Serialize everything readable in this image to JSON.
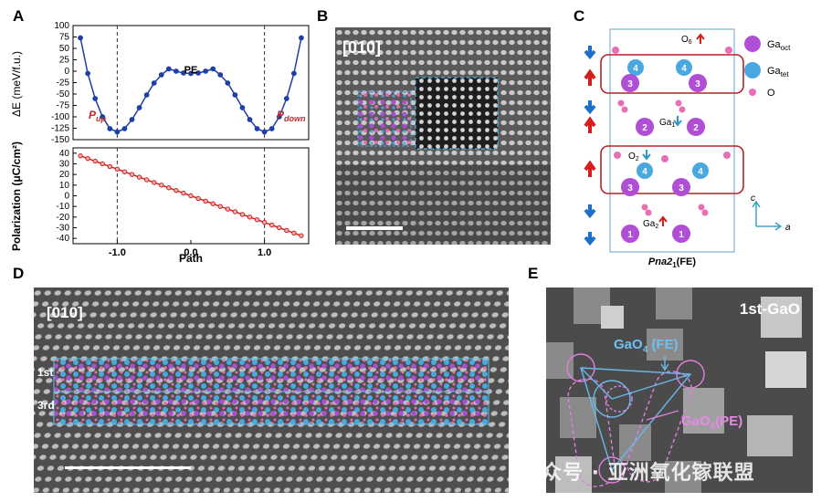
{
  "panel_labels": {
    "a": "A",
    "b": "B",
    "c": "C",
    "d": "D",
    "e": "E"
  },
  "chart_data": [
    {
      "type": "line",
      "panel": "A-top",
      "ylabel": "ΔE (meV/f.u.)",
      "ylim": [
        -150,
        100
      ],
      "yticks": [
        100,
        75,
        50,
        25,
        0,
        -25,
        -50,
        -75,
        -100,
        -125,
        -150
      ],
      "xlim": [
        -1.6,
        1.6
      ],
      "annotations": {
        "pe": "PE",
        "pup": "P",
        "pup_sub": "up",
        "pdown": "P",
        "pdown_sub": "down"
      },
      "dashed_lines_x": [
        -1.0,
        1.0
      ],
      "color": "#1f3fa8",
      "series": [
        {
          "x": [
            -1.5,
            -1.4,
            -1.3,
            -1.2,
            -1.1,
            -1.0,
            -0.9,
            -0.8,
            -0.7,
            -0.6,
            -0.5,
            -0.4,
            -0.3,
            -0.2,
            -0.1,
            0.0,
            0.1,
            0.2,
            0.3,
            0.4,
            0.5,
            0.6,
            0.7,
            0.8,
            0.9,
            1.0,
            1.1,
            1.2,
            1.3,
            1.4,
            1.5
          ],
          "values": [
            73,
            -5,
            -60,
            -100,
            -126,
            -133,
            -126,
            -106,
            -80,
            -52,
            -26,
            -8,
            5,
            0,
            -4,
            -5,
            -4,
            0,
            5,
            -8,
            -26,
            -52,
            -80,
            -106,
            -126,
            -133,
            -126,
            -100,
            -60,
            -5,
            73
          ]
        }
      ]
    },
    {
      "type": "line",
      "panel": "A-bottom",
      "ylabel": "Polarization (μC/cm²)",
      "xlabel": "Path",
      "ylim": [
        -45,
        45
      ],
      "yticks": [
        40,
        30,
        20,
        10,
        0,
        -10,
        -20,
        -30,
        -40
      ],
      "xticks": [
        "-1.0",
        "0.0",
        "1.0"
      ],
      "xtick_values": [
        -1.0,
        0.0,
        1.0
      ],
      "xlim": [
        -1.6,
        1.6
      ],
      "color": "#d42020",
      "series": [
        {
          "x": [
            -1.5,
            -1.4,
            -1.3,
            -1.2,
            -1.1,
            -1.0,
            -0.9,
            -0.8,
            -0.7,
            -0.6,
            -0.5,
            -0.4,
            -0.3,
            -0.2,
            -0.1,
            0.0,
            0.1,
            0.2,
            0.3,
            0.4,
            0.5,
            0.6,
            0.7,
            0.8,
            0.9,
            1.0,
            1.1,
            1.2,
            1.3,
            1.4,
            1.5
          ],
          "values": [
            37.5,
            35,
            32.5,
            30,
            27.5,
            25,
            22.5,
            20,
            17.5,
            15,
            12.5,
            10,
            7.5,
            5,
            2.5,
            0,
            -2.5,
            -5,
            -7.5,
            -10,
            -12.5,
            -15,
            -17.5,
            -20,
            -22.5,
            -25,
            -27.5,
            -30,
            -32.5,
            -35,
            -37.5
          ]
        }
      ]
    }
  ],
  "panel_b": {
    "zone": "[010]"
  },
  "panel_c": {
    "title": "Pna2",
    "title_sub": "1",
    "title_suffix": "(FE)",
    "labels": {
      "o6": "O",
      "o6_sub": "6",
      "o2": "O",
      "o2_sub": "2",
      "ga1": "Ga",
      "ga1_sub": "1",
      "ga2": "Ga",
      "ga2_sub": "2"
    },
    "legend": [
      {
        "label": "Ga",
        "sub": "oct",
        "color": "#b04fd6"
      },
      {
        "label": "Ga",
        "sub": "tet",
        "color": "#4aa8e0"
      },
      {
        "label": "O",
        "sub": "",
        "color": "#e86fb6"
      }
    ],
    "axes": {
      "c": "c",
      "a": "a"
    },
    "atom_numbers": {
      "four": "4",
      "three": "3",
      "two": "2",
      "one": "1"
    }
  },
  "panel_d": {
    "zone": "[010]",
    "row1": "1st",
    "row3": "3rd"
  },
  "panel_e": {
    "title": "1st-GaO",
    "gao4": "GaO",
    "gao4_sub": "4",
    "gao4_suffix": "(FE)",
    "gao6": "GaO",
    "gao6_sub": "6",
    "gao6_suffix": "(PE)"
  },
  "watermark": "公众号 · 亚洲氧化镓联盟"
}
